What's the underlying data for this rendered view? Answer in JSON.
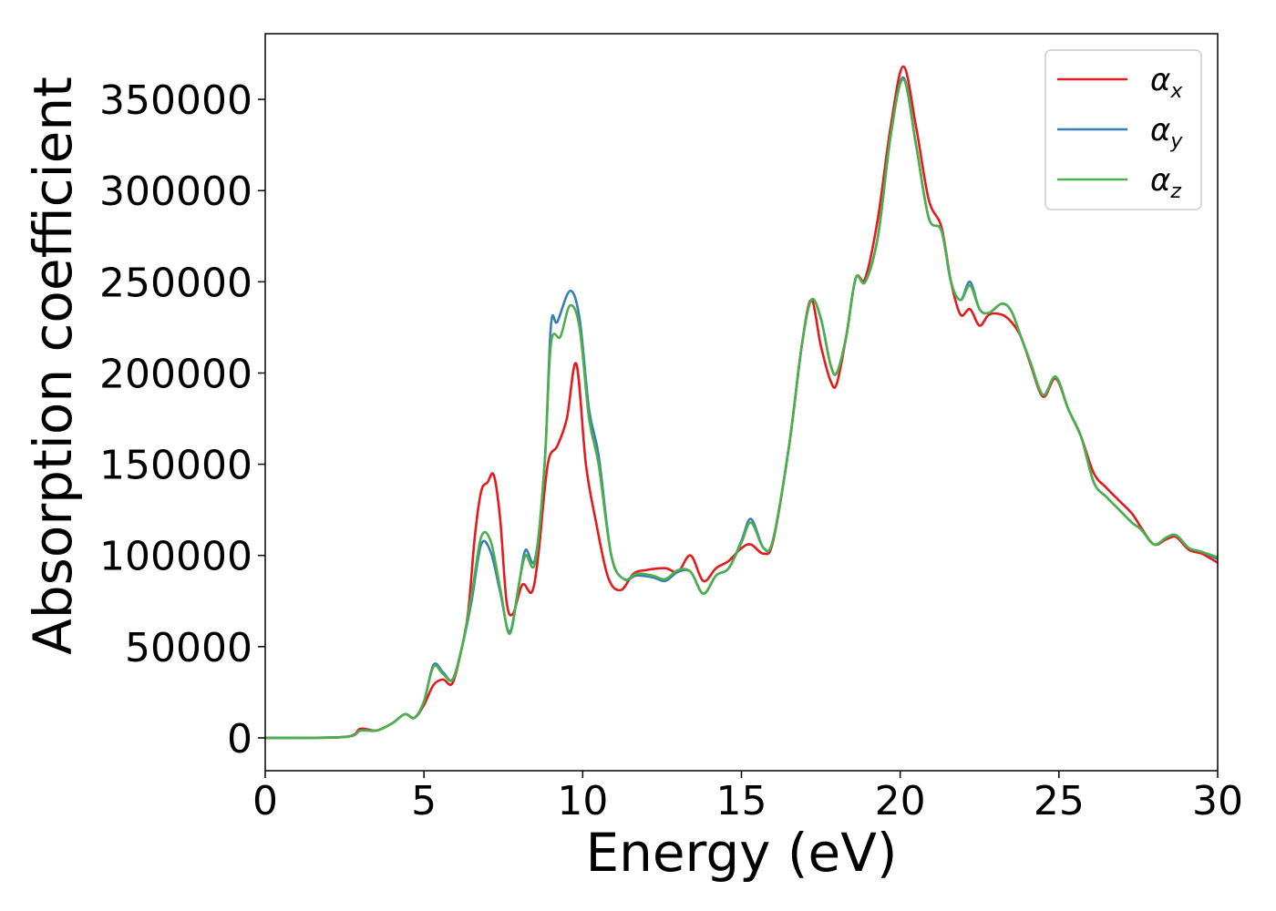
{
  "chart_data": {
    "type": "line",
    "title": "",
    "xlabel": "Energy (eV)",
    "ylabel": "Absorption coefficient",
    "xlim": [
      0,
      30
    ],
    "ylim": [
      -18000,
      386000
    ],
    "xticks": [
      0,
      5,
      10,
      15,
      20,
      25,
      30
    ],
    "yticks": [
      0,
      50000,
      100000,
      150000,
      200000,
      250000,
      300000,
      350000
    ],
    "xtick_labels": [
      "0",
      "5",
      "10",
      "15",
      "20",
      "25",
      "30"
    ],
    "ytick_labels": [
      "0",
      "50000",
      "100000",
      "150000",
      "200000",
      "250000",
      "300000",
      "350000"
    ],
    "grid": false,
    "legend": "top-right",
    "series": [
      {
        "name": "α",
        "subscript": "x",
        "color": "#e41a1c",
        "points": [
          [
            0,
            0
          ],
          [
            2.5,
            500
          ],
          [
            3,
            5000
          ],
          [
            3.5,
            4000
          ],
          [
            4,
            8000
          ],
          [
            4.4,
            13000
          ],
          [
            4.7,
            11000
          ],
          [
            5,
            18000
          ],
          [
            5.3,
            29000
          ],
          [
            5.6,
            32000
          ],
          [
            5.9,
            30000
          ],
          [
            6.2,
            50000
          ],
          [
            6.4,
            70000
          ],
          [
            6.6,
            110000
          ],
          [
            6.8,
            135000
          ],
          [
            7,
            140000
          ],
          [
            7.2,
            144000
          ],
          [
            7.4,
            120000
          ],
          [
            7.6,
            75000
          ],
          [
            7.8,
            68000
          ],
          [
            8.1,
            84000
          ],
          [
            8.4,
            80000
          ],
          [
            8.6,
            100000
          ],
          [
            8.9,
            150000
          ],
          [
            9.2,
            160000
          ],
          [
            9.5,
            175000
          ],
          [
            9.8,
            205000
          ],
          [
            10.1,
            150000
          ],
          [
            10.4,
            120000
          ],
          [
            10.8,
            88000
          ],
          [
            11.2,
            81000
          ],
          [
            11.6,
            90000
          ],
          [
            12,
            92000
          ],
          [
            12.6,
            93000
          ],
          [
            13,
            91000
          ],
          [
            13.4,
            100000
          ],
          [
            13.8,
            86000
          ],
          [
            14.2,
            93000
          ],
          [
            14.6,
            97000
          ],
          [
            15,
            104000
          ],
          [
            15.3,
            106000
          ],
          [
            15.7,
            101000
          ],
          [
            16,
            108000
          ],
          [
            16.5,
            160000
          ],
          [
            16.9,
            215000
          ],
          [
            17.2,
            240000
          ],
          [
            17.5,
            215000
          ],
          [
            17.8,
            196000
          ],
          [
            18,
            194000
          ],
          [
            18.3,
            220000
          ],
          [
            18.6,
            252000
          ],
          [
            18.9,
            252000
          ],
          [
            19.3,
            285000
          ],
          [
            19.7,
            335000
          ],
          [
            20.1,
            368000
          ],
          [
            20.5,
            335000
          ],
          [
            20.9,
            295000
          ],
          [
            21.3,
            280000
          ],
          [
            21.6,
            250000
          ],
          [
            21.9,
            232000
          ],
          [
            22.2,
            235000
          ],
          [
            22.5,
            226000
          ],
          [
            22.8,
            232000
          ],
          [
            23.2,
            232000
          ],
          [
            23.5,
            228000
          ],
          [
            23.8,
            220000
          ],
          [
            24.1,
            205000
          ],
          [
            24.5,
            187000
          ],
          [
            24.9,
            197000
          ],
          [
            25.3,
            180000
          ],
          [
            25.7,
            165000
          ],
          [
            26.1,
            145000
          ],
          [
            26.5,
            137000
          ],
          [
            26.9,
            130000
          ],
          [
            27.3,
            123000
          ],
          [
            27.6,
            115000
          ],
          [
            28,
            106000
          ],
          [
            28.4,
            109000
          ],
          [
            28.7,
            110000
          ],
          [
            29.1,
            103000
          ],
          [
            29.5,
            101000
          ],
          [
            30,
            96000
          ]
        ]
      },
      {
        "name": "α",
        "subscript": "y",
        "color": "#377eb8",
        "points": [
          [
            0,
            0
          ],
          [
            2.5,
            500
          ],
          [
            3,
            4000
          ],
          [
            3.5,
            4000
          ],
          [
            4,
            8000
          ],
          [
            4.4,
            13000
          ],
          [
            4.7,
            11000
          ],
          [
            5,
            20000
          ],
          [
            5.3,
            40000
          ],
          [
            5.6,
            36000
          ],
          [
            5.9,
            32000
          ],
          [
            6.2,
            50000
          ],
          [
            6.5,
            75000
          ],
          [
            6.8,
            106000
          ],
          [
            7.1,
            102000
          ],
          [
            7.4,
            80000
          ],
          [
            7.7,
            58000
          ],
          [
            8,
            85000
          ],
          [
            8.2,
            103000
          ],
          [
            8.5,
            98000
          ],
          [
            8.8,
            150000
          ],
          [
            9,
            226000
          ],
          [
            9.2,
            228000
          ],
          [
            9.6,
            245000
          ],
          [
            9.9,
            230000
          ],
          [
            10.2,
            180000
          ],
          [
            10.5,
            155000
          ],
          [
            10.9,
            100000
          ],
          [
            11.3,
            87000
          ],
          [
            11.7,
            89000
          ],
          [
            12.2,
            88000
          ],
          [
            12.6,
            86000
          ],
          [
            13,
            91000
          ],
          [
            13.4,
            91000
          ],
          [
            13.8,
            79000
          ],
          [
            14.2,
            89000
          ],
          [
            14.6,
            93000
          ],
          [
            15,
            108000
          ],
          [
            15.3,
            120000
          ],
          [
            15.7,
            104000
          ],
          [
            16,
            109000
          ],
          [
            16.5,
            160000
          ],
          [
            16.9,
            215000
          ],
          [
            17.2,
            240000
          ],
          [
            17.5,
            230000
          ],
          [
            17.8,
            205000
          ],
          [
            18,
            200000
          ],
          [
            18.3,
            220000
          ],
          [
            18.6,
            252000
          ],
          [
            18.9,
            250000
          ],
          [
            19.3,
            275000
          ],
          [
            19.7,
            330000
          ],
          [
            20.1,
            362000
          ],
          [
            20.5,
            325000
          ],
          [
            20.9,
            285000
          ],
          [
            21.3,
            278000
          ],
          [
            21.6,
            250000
          ],
          [
            21.9,
            240000
          ],
          [
            22.2,
            250000
          ],
          [
            22.5,
            235000
          ],
          [
            22.8,
            233000
          ],
          [
            23.2,
            238000
          ],
          [
            23.5,
            234000
          ],
          [
            23.8,
            220000
          ],
          [
            24.1,
            206000
          ],
          [
            24.5,
            188000
          ],
          [
            24.9,
            198000
          ],
          [
            25.3,
            180000
          ],
          [
            25.7,
            165000
          ],
          [
            26.1,
            140000
          ],
          [
            26.5,
            132000
          ],
          [
            26.9,
            125000
          ],
          [
            27.3,
            118000
          ],
          [
            27.6,
            114000
          ],
          [
            28,
            106000
          ],
          [
            28.4,
            110000
          ],
          [
            28.7,
            111000
          ],
          [
            29.1,
            104000
          ],
          [
            29.5,
            102000
          ],
          [
            30,
            98000
          ]
        ]
      },
      {
        "name": "α",
        "subscript": "z",
        "color": "#4daf4a",
        "points": [
          [
            0,
            0
          ],
          [
            2.5,
            500
          ],
          [
            3,
            4000
          ],
          [
            3.5,
            4000
          ],
          [
            4,
            8000
          ],
          [
            4.4,
            13000
          ],
          [
            4.7,
            11000
          ],
          [
            5,
            20000
          ],
          [
            5.3,
            39000
          ],
          [
            5.6,
            35000
          ],
          [
            5.9,
            32000
          ],
          [
            6.2,
            50000
          ],
          [
            6.5,
            78000
          ],
          [
            6.8,
            110000
          ],
          [
            7.1,
            108000
          ],
          [
            7.4,
            82000
          ],
          [
            7.7,
            57000
          ],
          [
            8,
            85000
          ],
          [
            8.2,
            100000
          ],
          [
            8.5,
            96000
          ],
          [
            8.8,
            150000
          ],
          [
            9,
            216000
          ],
          [
            9.3,
            220000
          ],
          [
            9.6,
            237000
          ],
          [
            9.9,
            225000
          ],
          [
            10.2,
            175000
          ],
          [
            10.5,
            150000
          ],
          [
            10.9,
            100000
          ],
          [
            11.3,
            87000
          ],
          [
            11.7,
            90000
          ],
          [
            12.2,
            89000
          ],
          [
            12.6,
            87000
          ],
          [
            13,
            92000
          ],
          [
            13.4,
            91000
          ],
          [
            13.8,
            79000
          ],
          [
            14.2,
            89000
          ],
          [
            14.6,
            93000
          ],
          [
            15,
            107000
          ],
          [
            15.3,
            118000
          ],
          [
            15.7,
            104000
          ],
          [
            16,
            109000
          ],
          [
            16.5,
            160000
          ],
          [
            16.9,
            215000
          ],
          [
            17.2,
            240000
          ],
          [
            17.5,
            230000
          ],
          [
            17.8,
            205000
          ],
          [
            18,
            200000
          ],
          [
            18.3,
            220000
          ],
          [
            18.6,
            252000
          ],
          [
            18.9,
            250000
          ],
          [
            19.3,
            275000
          ],
          [
            19.7,
            330000
          ],
          [
            20.1,
            361000
          ],
          [
            20.5,
            325000
          ],
          [
            20.9,
            285000
          ],
          [
            21.3,
            278000
          ],
          [
            21.6,
            250000
          ],
          [
            21.9,
            240000
          ],
          [
            22.2,
            248000
          ],
          [
            22.5,
            235000
          ],
          [
            22.8,
            233000
          ],
          [
            23.2,
            238000
          ],
          [
            23.5,
            234000
          ],
          [
            23.8,
            220000
          ],
          [
            24.1,
            206000
          ],
          [
            24.5,
            188000
          ],
          [
            24.9,
            198000
          ],
          [
            25.3,
            180000
          ],
          [
            25.7,
            165000
          ],
          [
            26.1,
            140000
          ],
          [
            26.5,
            132000
          ],
          [
            26.9,
            125000
          ],
          [
            27.3,
            118000
          ],
          [
            27.6,
            114000
          ],
          [
            28,
            106000
          ],
          [
            28.4,
            110000
          ],
          [
            28.7,
            111000
          ],
          [
            29.1,
            104000
          ],
          [
            29.5,
            102000
          ],
          [
            30,
            99000
          ]
        ]
      }
    ]
  }
}
